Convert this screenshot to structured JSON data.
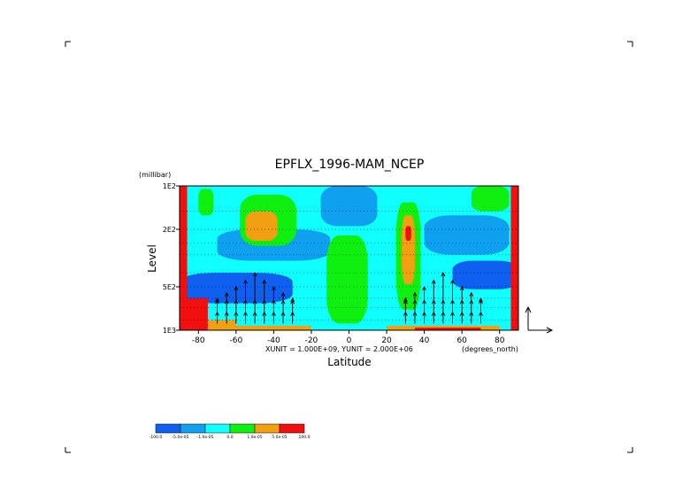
{
  "chart_data": {
    "type": "heatmap",
    "title": "EPFLX_1996-MAM_NCEP",
    "xlabel": "Latitude",
    "ylabel": "Level",
    "y_units": "(millibar)",
    "x_units": "(degrees_north)",
    "xlim": [
      -90,
      90
    ],
    "ylim": [
      100,
      1000
    ],
    "y_scale": "log",
    "x_ticks": [
      -80,
      -60,
      -40,
      -20,
      0,
      20,
      40,
      60,
      80
    ],
    "x_tick_labels": [
      "-80",
      "-60",
      "-40",
      "-20",
      "0",
      "20",
      "40",
      "60",
      "80"
    ],
    "y_ticks": [
      100,
      200,
      500,
      1000
    ],
    "y_tick_labels": [
      "1E2",
      "2E2",
      "5E2",
      "1E3"
    ],
    "grid": "dotted horizontal level lines",
    "vector_units": "XUNIT = 1.000E+09, YUNIT = 2.000E+06",
    "colorbar": {
      "tick_labels": [
        "-100.0",
        "-5.0e-05",
        "-1.0e-05",
        "0.0",
        "1.0e-05",
        "5.0e-05",
        "100.0"
      ],
      "colors": [
        "#1060f0",
        "#10a0f0",
        "#10ffff",
        "#10f010",
        "#f0a010",
        "#f01010"
      ]
    },
    "regions": [
      {
        "level": 1,
        "color": "#10ffff",
        "x_range": [
          -90,
          90
        ],
        "p_range": [
          100,
          1000
        ]
      },
      {
        "level": 0,
        "color": "#10a0f0",
        "x_range": [
          -70,
          -10
        ],
        "p_range": [
          200,
          330
        ]
      },
      {
        "level": 0,
        "color": "#10a0f0",
        "x_range": [
          -15,
          15
        ],
        "p_range": [
          100,
          190
        ]
      },
      {
        "level": 0,
        "color": "#10a0f0",
        "x_range": [
          40,
          85
        ],
        "p_range": [
          160,
          300
        ]
      },
      {
        "level": -1,
        "color": "#1060f0",
        "x_range": [
          -90,
          -30
        ],
        "p_range": [
          400,
          650
        ]
      },
      {
        "level": -1,
        "color": "#1060f0",
        "x_range": [
          55,
          90
        ],
        "p_range": [
          330,
          520
        ]
      },
      {
        "level": 2,
        "color": "#10f010",
        "x_range": [
          -12,
          10
        ],
        "p_range": [
          220,
          900
        ]
      },
      {
        "level": 2,
        "color": "#10f010",
        "x_range": [
          -80,
          -72
        ],
        "p_range": [
          105,
          160
        ]
      },
      {
        "level": 2,
        "color": "#10f010",
        "x_range": [
          -58,
          -28
        ],
        "p_range": [
          115,
          260
        ]
      },
      {
        "level": 2,
        "color": "#10f010",
        "x_range": [
          25,
          38
        ],
        "p_range": [
          130,
          720
        ]
      },
      {
        "level": 2,
        "color": "#10f010",
        "x_range": [
          65,
          85
        ],
        "p_range": [
          100,
          150
        ]
      },
      {
        "level": 3,
        "color": "#f0a010",
        "x_range": [
          -55,
          -38
        ],
        "p_range": [
          150,
          240
        ]
      },
      {
        "level": 3,
        "color": "#f0a010",
        "x_range": [
          28,
          35
        ],
        "p_range": [
          160,
          480
        ]
      },
      {
        "level": 4,
        "color": "#f01010",
        "x_range": [
          30,
          33
        ],
        "p_range": [
          190,
          240
        ]
      }
    ],
    "arrow_columns_lat": [
      -70,
      -65,
      -60,
      -55,
      -50,
      -45,
      -40,
      -35,
      -30,
      30,
      35,
      40,
      45,
      50,
      55,
      60,
      65,
      70
    ]
  }
}
